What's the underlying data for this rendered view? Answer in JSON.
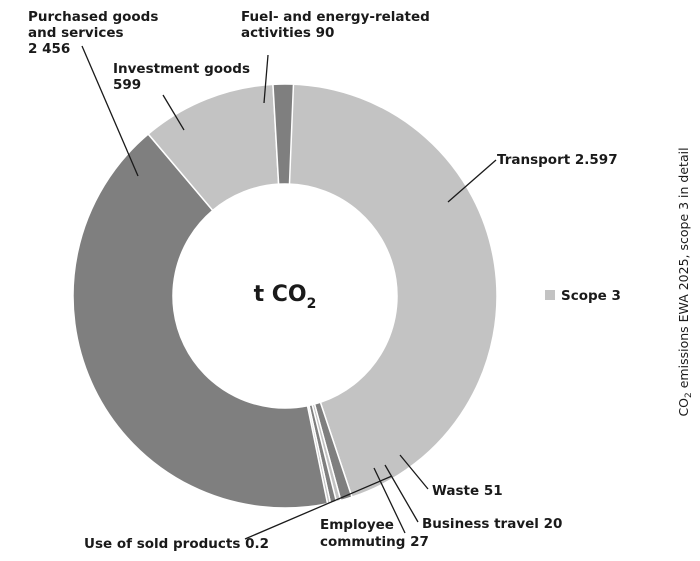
{
  "chart_data": {
    "type": "pie",
    "style": "donut",
    "center_label": {
      "main": "t CO",
      "subscript": "2"
    },
    "side_title": {
      "prefix": "CO",
      "subscript": "2",
      "rest": " emissions EWA 2025, scope 3 in detail"
    },
    "legend": [
      {
        "label": "Scope 3",
        "color": "#c3c3c3"
      }
    ],
    "slices": [
      {
        "id": "transport",
        "lines": [
          "Transport  2.597"
        ],
        "value": 2597,
        "color": "#c3c3c3"
      },
      {
        "id": "waste",
        "lines": [
          "Waste  51"
        ],
        "value": 51,
        "color": "#7f7f7f"
      },
      {
        "id": "business-travel",
        "lines": [
          "Business travel  20"
        ],
        "value": 20,
        "color": "#c3c3c3"
      },
      {
        "id": "employee-commuting",
        "lines": [
          "Employee",
          "commuting  27"
        ],
        "value": 27,
        "color": "#7f7f7f"
      },
      {
        "id": "use-of-sold-products",
        "lines": [
          "Use of sold products 0.2"
        ],
        "value": 0.2,
        "color": "#c3c3c3"
      },
      {
        "id": "purchased-goods",
        "lines": [
          "Purchased goods",
          "and services",
          "2 456"
        ],
        "value": 2456,
        "color": "#7f7f7f"
      },
      {
        "id": "investment-goods",
        "lines": [
          "Investment goods",
          "599"
        ],
        "value": 599,
        "color": "#c3c3c3"
      },
      {
        "id": "fuel-energy",
        "lines": [
          "Fuel- and energy-related",
          "activities  90"
        ],
        "value": 90,
        "color": "#7f7f7f"
      }
    ]
  }
}
